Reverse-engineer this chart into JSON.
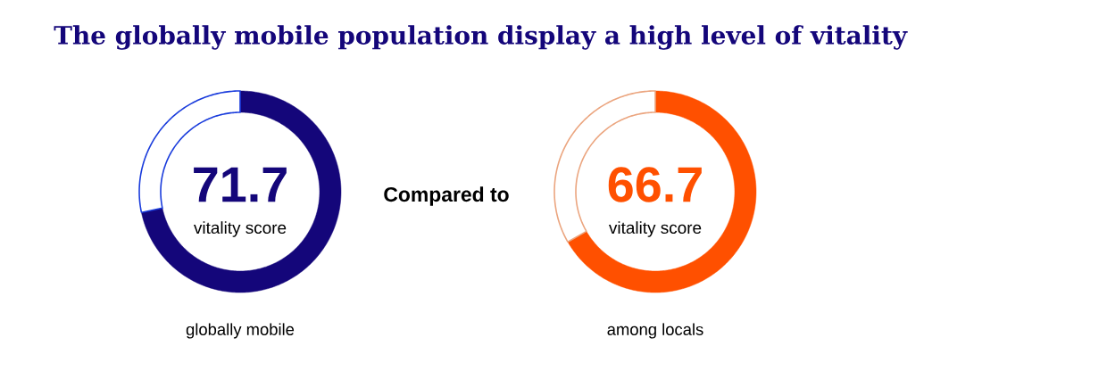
{
  "chart_data": [
    {
      "type": "donut",
      "title": "The globally mobile population display a high level of vitality",
      "xlabel": "globally mobile",
      "categories": [
        "vitality score",
        null
      ],
      "values": [
        71.7,
        28.3
      ],
      "colors": [
        "#14067a",
        "#1a3cdc"
      ],
      "value_labels": [
        "71.7",
        null
      ]
    },
    {
      "type": "donut",
      "xlabel": "among locals",
      "annotations": [
        "Compared to"
      ],
      "categories": [
        "vitality score",
        null
      ],
      "values": [
        66.7,
        33.3
      ],
      "colors": [
        "#ff5000",
        "#eba57f"
      ],
      "value_labels": [
        "66.7",
        null
      ]
    }
  ]
}
